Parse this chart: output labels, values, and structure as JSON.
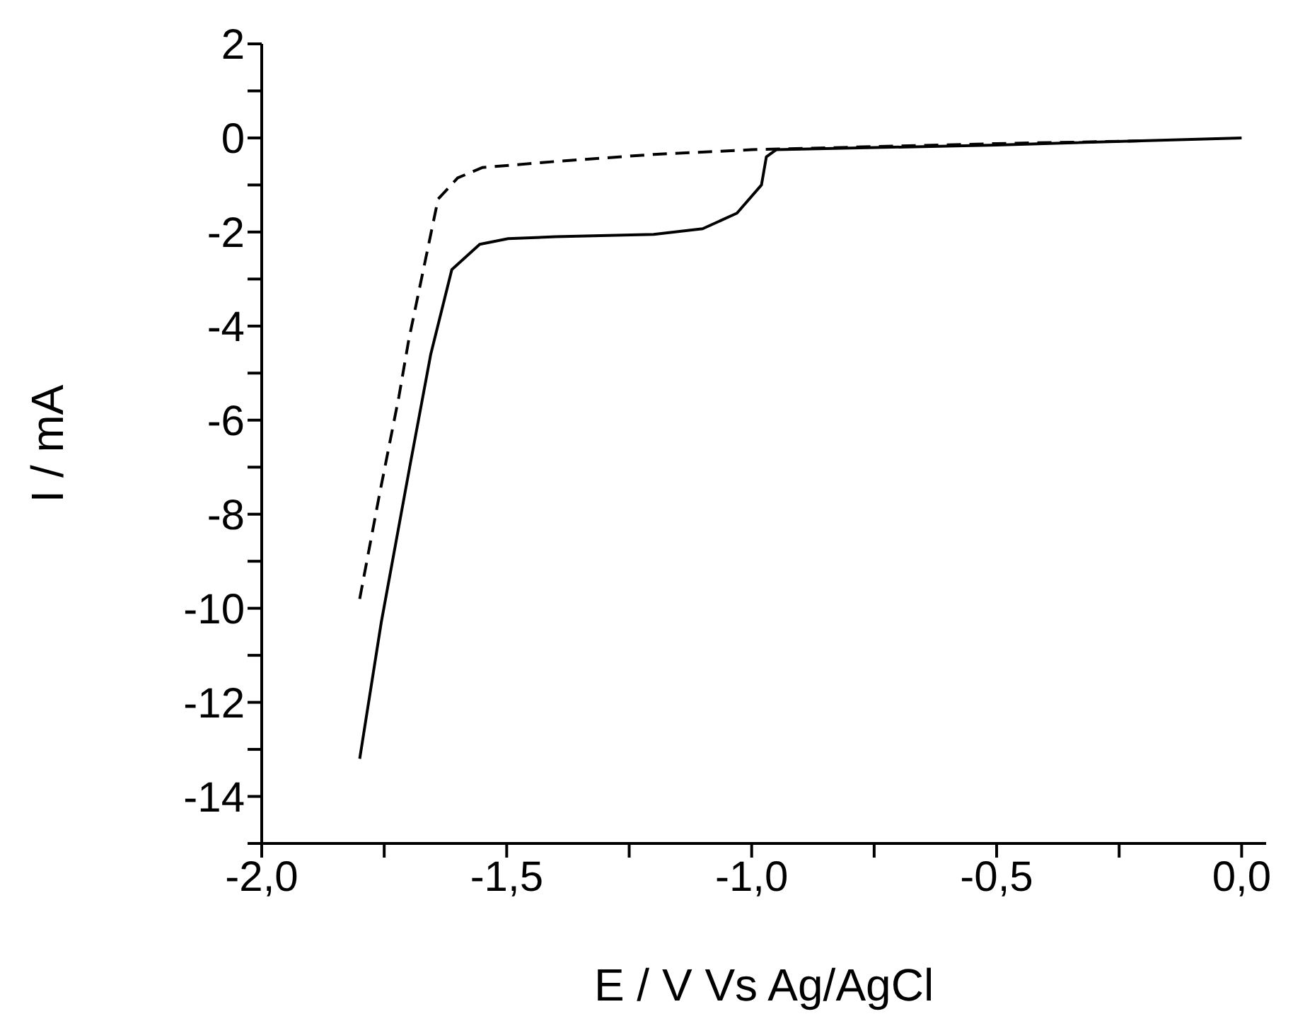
{
  "chart_data": {
    "type": "line",
    "xlabel": "E / V Vs Ag/AgCl",
    "ylabel": "I / mA",
    "xlim": [
      -2,
      0.05
    ],
    "xticks": [
      {
        "value": -2,
        "label": "-2,0"
      },
      {
        "value": -1.75,
        "label": null
      },
      {
        "value": -1.5,
        "label": "-1,5"
      },
      {
        "value": -1.25,
        "label": null
      },
      {
        "value": -1,
        "label": "-1,0"
      },
      {
        "value": -0.75,
        "label": null
      },
      {
        "value": -0.5,
        "label": "-0,5"
      },
      {
        "value": -0.25,
        "label": null
      },
      {
        "value": 0,
        "label": "0,0"
      }
    ],
    "ylim": [
      -15,
      2
    ],
    "yticks": [
      {
        "value": -15,
        "label": null
      },
      -14,
      {
        "value": -13,
        "label": null
      },
      -12,
      {
        "value": -11,
        "label": null
      },
      -10,
      {
        "value": -9,
        "label": null
      },
      -8,
      {
        "value": -7,
        "label": null
      },
      -6,
      {
        "value": -5,
        "label": null
      },
      -4,
      {
        "value": -3,
        "label": null
      },
      -2,
      {
        "value": -1,
        "label": null
      },
      0,
      {
        "value": 1,
        "label": null
      },
      2
    ],
    "grid": false,
    "marker": "none",
    "series": [
      {
        "color": "#000000",
        "line_style": "solid",
        "x": [
          -1.8,
          -1.756,
          -1.698,
          -1.655,
          -1.612,
          -1.555,
          -1.497,
          -1.4,
          -1.2,
          -1.1,
          -1.03,
          -0.98,
          -0.97,
          -0.95,
          -0.5,
          0
        ],
        "values": [
          -13.2,
          -10.3,
          -7.0,
          -4.6,
          -2.8,
          -2.26,
          -2.14,
          -2.1,
          -2.05,
          -1.93,
          -1.6,
          -1.0,
          -0.4,
          -0.25,
          -0.15,
          0
        ]
      },
      {
        "color": "#000000",
        "line_style": "dashed",
        "x": [
          -1.8,
          -1.76,
          -1.72,
          -1.7,
          -1.67,
          -1.64,
          -1.6,
          -1.55,
          -1.4,
          -1.2,
          -1.0,
          -0.5,
          -0.19
        ],
        "values": [
          -9.8,
          -7.6,
          -5.5,
          -4.3,
          -2.8,
          -1.3,
          -0.85,
          -0.63,
          -0.5,
          -0.35,
          -0.25,
          -0.12,
          -0.06
        ]
      }
    ]
  }
}
